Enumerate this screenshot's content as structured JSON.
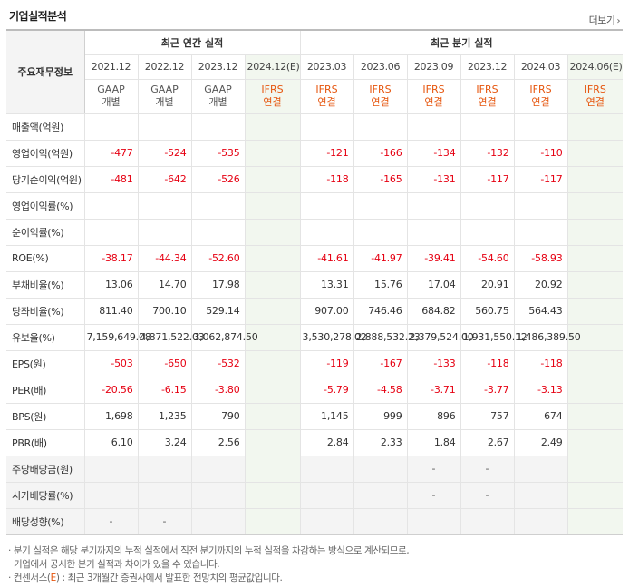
{
  "title": "기업실적분석",
  "more_label": "더보기",
  "more_arrow": "›",
  "row_header_label": "주요재무정보",
  "annual_group_label": "최근 연간 실적",
  "quarter_group_label": "최근 분기 실적",
  "periods": [
    "2021.12",
    "2022.12",
    "2023.12",
    "2024.12(E)",
    "2023.03",
    "2023.06",
    "2023.09",
    "2023.12",
    "2024.03",
    "2024.06(E)"
  ],
  "types": [
    {
      "line1": "GAAP",
      "line2": "개별"
    },
    {
      "line1": "GAAP",
      "line2": "개별"
    },
    {
      "line1": "GAAP",
      "line2": "개별"
    },
    {
      "line1": "IFRS",
      "line2": "연결"
    },
    {
      "line1": "IFRS",
      "line2": "연결"
    },
    {
      "line1": "IFRS",
      "line2": "연결"
    },
    {
      "line1": "IFRS",
      "line2": "연결"
    },
    {
      "line1": "IFRS",
      "line2": "연결"
    },
    {
      "line1": "IFRS",
      "line2": "연결"
    },
    {
      "line1": "IFRS",
      "line2": "연결"
    }
  ],
  "rows": [
    {
      "label": "매출액(억원)",
      "values": [
        "",
        "",
        "",
        "",
        "",
        "",
        "",
        "",
        "",
        ""
      ]
    },
    {
      "label": "영업이익(억원)",
      "values": [
        "-477",
        "-524",
        "-535",
        "",
        "-121",
        "-166",
        "-134",
        "-132",
        "-110",
        ""
      ]
    },
    {
      "label": "당기순이익(억원)",
      "values": [
        "-481",
        "-642",
        "-526",
        "",
        "-118",
        "-165",
        "-131",
        "-117",
        "-117",
        ""
      ]
    },
    {
      "label": "영업이익률(%)",
      "values": [
        "",
        "",
        "",
        "",
        "",
        "",
        "",
        "",
        "",
        ""
      ]
    },
    {
      "label": "순이익률(%)",
      "values": [
        "",
        "",
        "",
        "",
        "",
        "",
        "",
        "",
        "",
        ""
      ]
    },
    {
      "label": "ROE(%)",
      "values": [
        "-38.17",
        "-44.34",
        "-52.60",
        "",
        "-41.61",
        "-41.97",
        "-39.41",
        "-54.60",
        "-58.93",
        ""
      ]
    },
    {
      "label": "부채비율(%)",
      "values": [
        "13.06",
        "14.70",
        "17.98",
        "",
        "13.31",
        "15.76",
        "17.04",
        "20.91",
        "20.92",
        ""
      ]
    },
    {
      "label": "당좌비율(%)",
      "values": [
        "811.40",
        "700.10",
        "529.14",
        "",
        "907.00",
        "746.46",
        "684.82",
        "560.75",
        "564.43",
        ""
      ]
    },
    {
      "label": "유보율(%)",
      "values": [
        "7,159,649.08",
        "4,871,522.03",
        "3,062,874.50",
        "",
        "3,530,278.02",
        "2,888,532.23",
        "2,379,524.00",
        "1,931,550.12",
        "1,486,389.50",
        ""
      ]
    },
    {
      "label": "EPS(원)",
      "values": [
        "-503",
        "-650",
        "-532",
        "",
        "-119",
        "-167",
        "-133",
        "-118",
        "-118",
        ""
      ]
    },
    {
      "label": "PER(배)",
      "values": [
        "-20.56",
        "-6.15",
        "-3.80",
        "",
        "-5.79",
        "-4.58",
        "-3.71",
        "-3.77",
        "-3.13",
        ""
      ]
    },
    {
      "label": "BPS(원)",
      "values": [
        "1,698",
        "1,235",
        "790",
        "",
        "1,145",
        "999",
        "896",
        "757",
        "674",
        ""
      ]
    },
    {
      "label": "PBR(배)",
      "values": [
        "6.10",
        "3.24",
        "2.56",
        "",
        "2.84",
        "2.33",
        "1.84",
        "2.67",
        "2.49",
        ""
      ]
    },
    {
      "label": "주당배당금(원)",
      "values": [
        "",
        "",
        "",
        "",
        "",
        "",
        "-",
        "-",
        "",
        ""
      ]
    },
    {
      "label": "시가배당률(%)",
      "values": [
        "",
        "",
        "",
        "",
        "",
        "",
        "-",
        "-",
        "",
        ""
      ]
    },
    {
      "label": "배당성향(%)",
      "values": [
        "-",
        "-",
        "",
        "",
        "",
        "",
        "",
        "",
        "",
        ""
      ]
    }
  ],
  "notes": {
    "line1": "· 분기 실적은 해당 분기까지의 누적 실적에서 직전 분기까지의 누적 실적을 차감하는 방식으로 계산되므로,",
    "line2": "기업에서 공시한 분기 실적과 차이가 있을 수 있습니다.",
    "line3_prefix": "· 컨센서스(",
    "line3_e": "E",
    "line3_suffix": ") : 최근 3개월간 증권사에서 발표한 전망치의 평균값입니다."
  },
  "colors": {
    "negative": "#e60012",
    "ifrs": "#e6550d",
    "estimate_bg": "#f2f7ef"
  }
}
